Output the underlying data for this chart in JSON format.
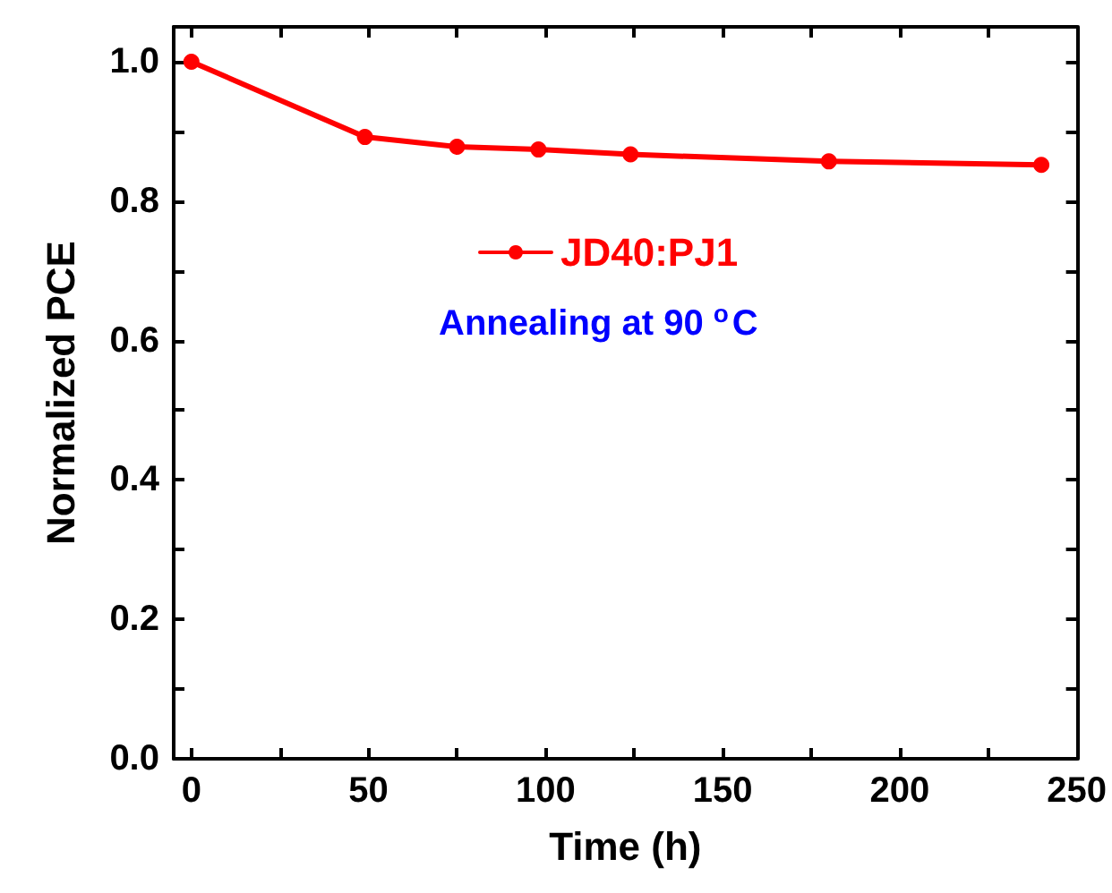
{
  "chart_data": {
    "type": "line",
    "xlabel": "Time (h)",
    "ylabel": "Normalized PCE",
    "x": [
      0,
      49,
      75,
      98,
      124,
      180,
      240
    ],
    "series": [
      {
        "name": "JD40:PJ1",
        "color": "#ff0000",
        "values": [
          1.0,
          0.892,
          0.878,
          0.874,
          0.867,
          0.857,
          0.852
        ]
      }
    ],
    "xlim": [
      -5,
      250
    ],
    "xticks": [
      0,
      {
        "value": 25,
        "label": null
      },
      50,
      {
        "value": 75,
        "label": null
      },
      100,
      {
        "value": 125,
        "label": null
      },
      150,
      {
        "value": 175,
        "label": null
      },
      200,
      {
        "value": 225,
        "label": null
      },
      250
    ],
    "ylim": [
      0,
      1.05
    ],
    "yticks": [
      {
        "value": 0,
        "label": "0.0"
      },
      {
        "value": 0.1,
        "label": null
      },
      {
        "value": 0.2,
        "label": "0.2"
      },
      {
        "value": 0.3,
        "label": null
      },
      {
        "value": 0.4,
        "label": "0.4"
      },
      {
        "value": 0.5,
        "label": null
      },
      {
        "value": 0.6,
        "label": "0.6"
      },
      {
        "value": 0.7,
        "label": null
      },
      {
        "value": 0.8,
        "label": "0.8"
      },
      {
        "value": 0.9,
        "label": null
      },
      {
        "value": 1.0,
        "label": "1.0"
      }
    ],
    "annotations": [
      "Annealing at 90 $^{o}$C"
    ],
    "legend": "top",
    "marker": "circle",
    "line_style": "solid",
    "grid": false
  }
}
